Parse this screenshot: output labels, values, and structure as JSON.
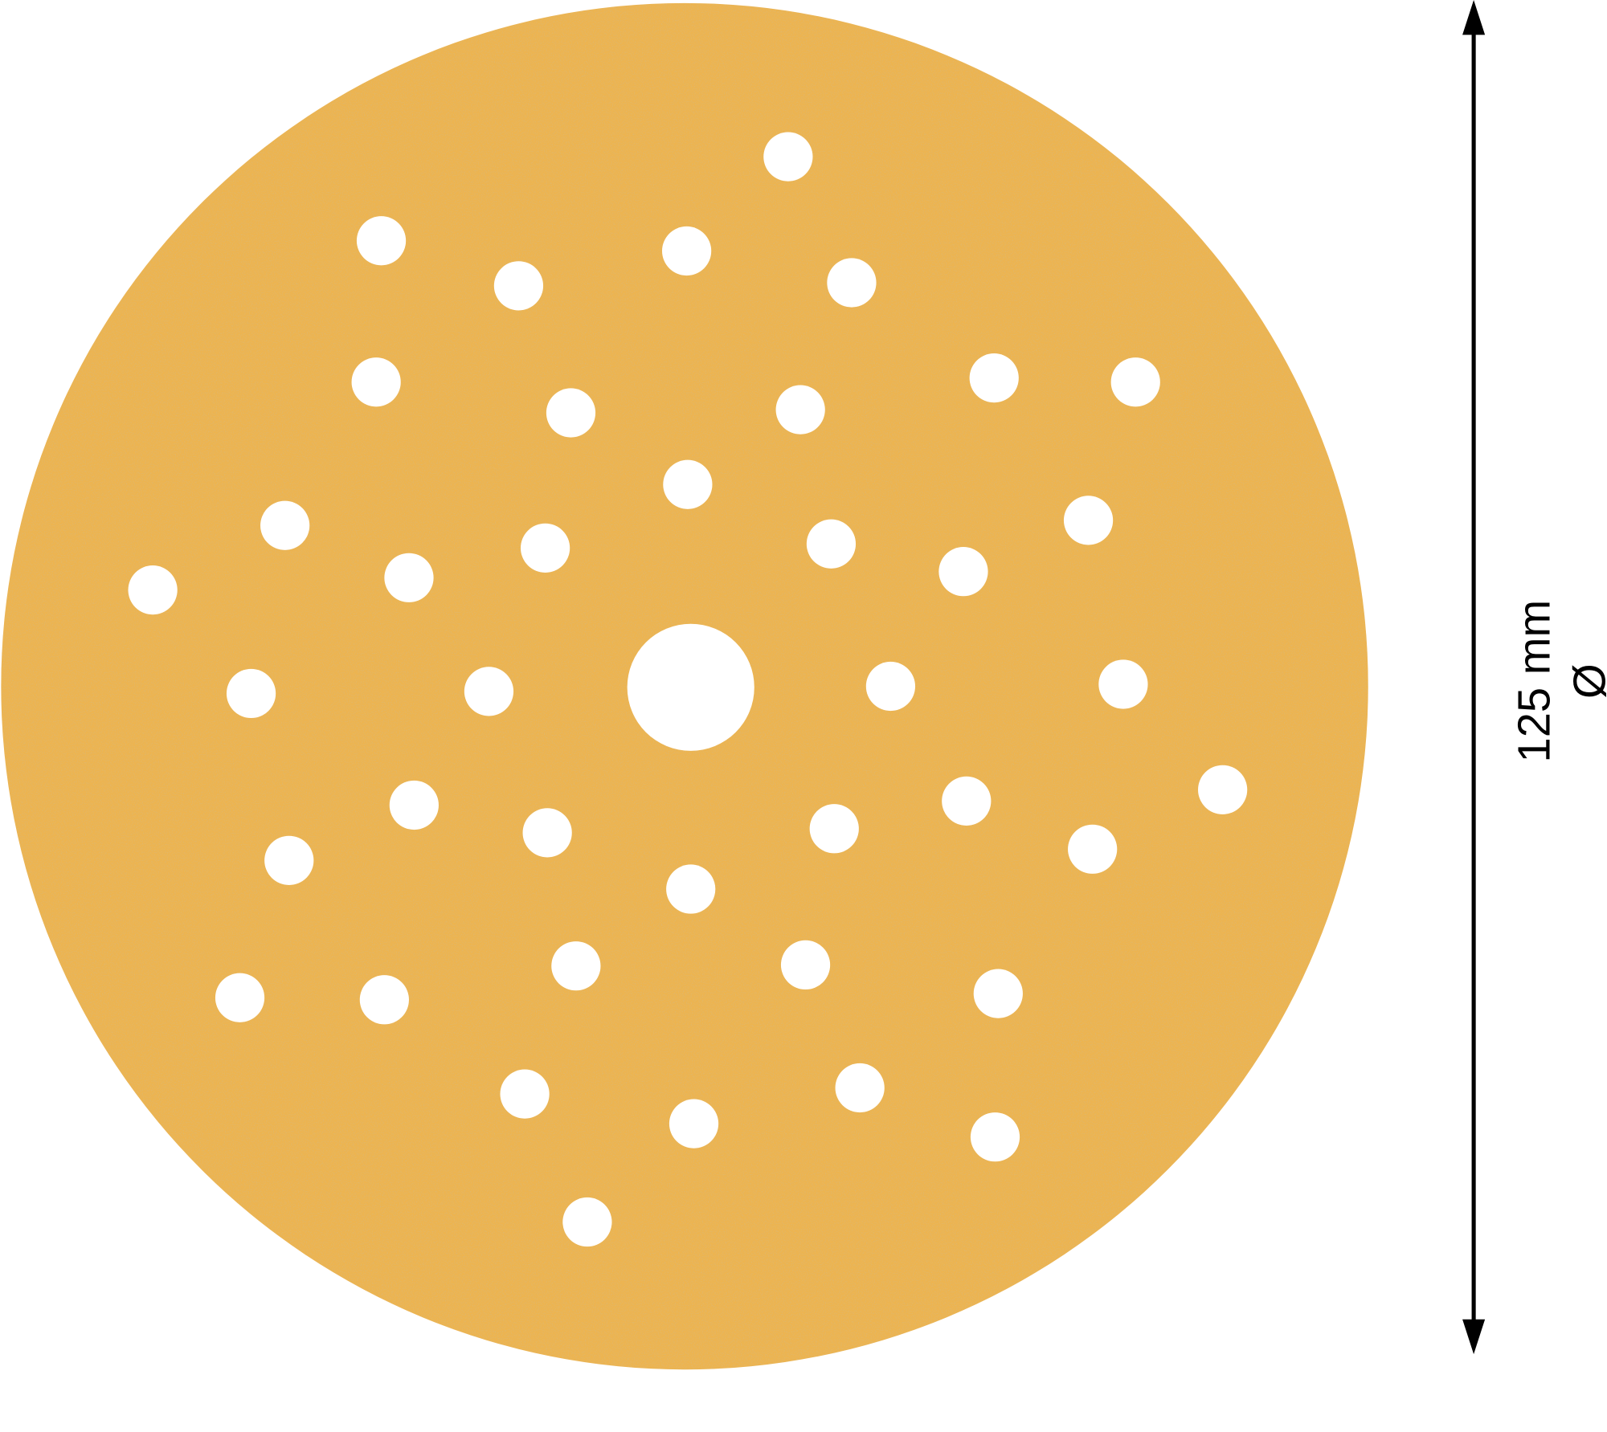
{
  "dimension": {
    "value_label": "125 mm",
    "symbol": "Ø"
  },
  "colors": {
    "disc": "#EDB44F",
    "disc_speckle": "#C9A36A",
    "background": "#FFFFFF",
    "arrow": "#000000"
  }
}
